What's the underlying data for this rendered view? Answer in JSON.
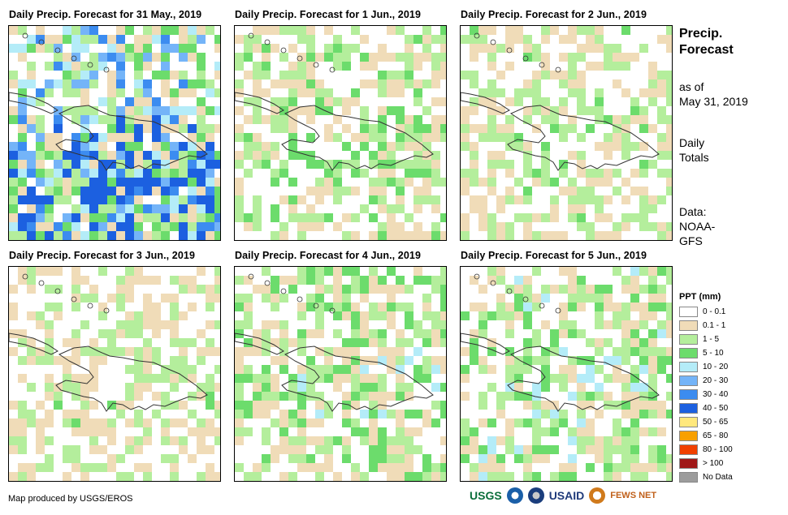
{
  "panels": [
    {
      "title": "Daily Precip. Forecast for 31 May., 2019",
      "intensity": 1.0
    },
    {
      "title": "Daily Precip. Forecast for 1 Jun., 2019",
      "intensity": 0.45
    },
    {
      "title": "Daily Precip. Forecast for 2 Jun., 2019",
      "intensity": 0.35
    },
    {
      "title": "Daily Precip. Forecast for 3 Jun., 2019",
      "intensity": 0.3
    },
    {
      "title": "Daily Precip. Forecast for 4 Jun., 2019",
      "intensity": 0.55
    },
    {
      "title": "Daily Precip. Forecast for 5 Jun., 2019",
      "intensity": 0.6
    }
  ],
  "side": {
    "title_line1": "Precip.",
    "title_line2": "Forecast",
    "asof_line1": "as of",
    "asof_line2": "May 31, 2019",
    "totals_line1": "Daily",
    "totals_line2": "Totals",
    "data_line1": "Data:",
    "data_line2": "NOAA-",
    "data_line3": "GFS"
  },
  "legend": {
    "title": "PPT (mm)",
    "items": [
      {
        "label": "0 - 0.1",
        "color": "#ffffff"
      },
      {
        "label": "0.1 - 1",
        "color": "#f0dcb8"
      },
      {
        "label": "1 - 5",
        "color": "#b4ee9c"
      },
      {
        "label": "5 - 10",
        "color": "#6cdc6c"
      },
      {
        "label": "10 - 20",
        "color": "#b4ecf8"
      },
      {
        "label": "20 - 30",
        "color": "#74b4f8"
      },
      {
        "label": "30 - 40",
        "color": "#3c8cf0"
      },
      {
        "label": "40 - 50",
        "color": "#1c60e0"
      },
      {
        "label": "50 - 65",
        "color": "#ffe87c"
      },
      {
        "label": "65 - 80",
        "color": "#f8a000"
      },
      {
        "label": "80 - 100",
        "color": "#f04000"
      },
      {
        "label": "> 100",
        "color": "#a01818"
      },
      {
        "label": "No Data",
        "color": "#9c9c9c"
      }
    ]
  },
  "credit": "Map produced by USGS/EROS",
  "logos": [
    "USGS",
    "USAID",
    "FEWS NET"
  ]
}
